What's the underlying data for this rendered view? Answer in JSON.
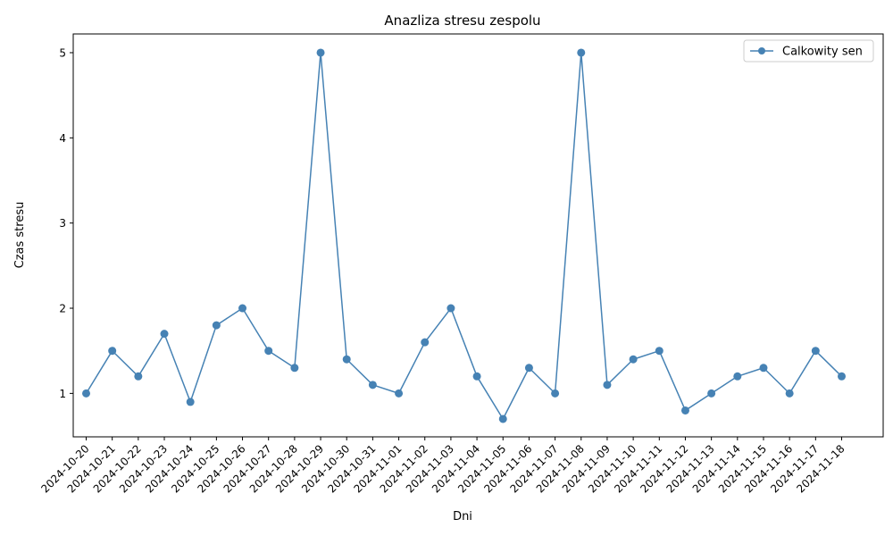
{
  "chart_data": {
    "type": "line",
    "title": "Anazliza stresu zespolu",
    "xlabel": "Dni",
    "ylabel": "Czas stresu",
    "categories": [
      "2024-10-20",
      "2024-10-21",
      "2024-10-22",
      "2024-10-23",
      "2024-10-24",
      "2024-10-25",
      "2024-10-26",
      "2024-10-27",
      "2024-10-28",
      "2024-10-29",
      "2024-10-30",
      "2024-10-31",
      "2024-11-01",
      "2024-11-02",
      "2024-11-03",
      "2024-11-04",
      "2024-11-05",
      "2024-11-06",
      "2024-11-07",
      "2024-11-08",
      "2024-11-09",
      "2024-11-10",
      "2024-11-11",
      "2024-11-12",
      "2024-11-13",
      "2024-11-14",
      "2024-11-15",
      "2024-11-16",
      "2024-11-17",
      "2024-11-18"
    ],
    "series": [
      {
        "name": "Calkowity sen",
        "color": "#4682b4",
        "marker": "circle",
        "values": [
          1.0,
          1.5,
          1.2,
          1.7,
          0.9,
          1.8,
          2.0,
          1.5,
          1.3,
          5.0,
          1.4,
          1.1,
          1.0,
          1.6,
          2.0,
          1.2,
          0.7,
          1.3,
          1.0,
          5.0,
          1.1,
          1.4,
          1.5,
          0.8,
          1.0,
          1.2,
          1.3,
          1.0,
          1.5,
          1.2
        ]
      }
    ],
    "ylim": [
      0.49,
      5.22
    ],
    "yticks": [
      1,
      2,
      3,
      4,
      5
    ],
    "grid": false,
    "legend_position": "top-right",
    "x_tick_rotation": 45
  }
}
